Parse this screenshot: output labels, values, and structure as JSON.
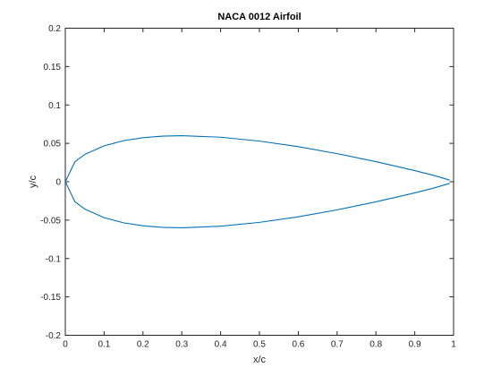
{
  "chart_data": {
    "type": "line",
    "title": "NACA 0012 Airfoil",
    "xlabel": "x/c",
    "ylabel": "y/c",
    "xlim": [
      0,
      1
    ],
    "ylim": [
      -0.2,
      0.2
    ],
    "grid": false,
    "x_ticks": [
      0,
      0.1,
      0.2,
      0.3,
      0.4,
      0.5,
      0.6,
      0.7,
      0.8,
      0.9,
      1
    ],
    "x_tick_labels": [
      "0",
      "0.1",
      "0.2",
      "0.3",
      "0.4",
      "0.5",
      "0.6",
      "0.7",
      "0.8",
      "0.9",
      "1"
    ],
    "y_ticks": [
      -0.2,
      -0.15,
      -0.1,
      -0.05,
      0,
      0.05,
      0.1,
      0.15,
      0.2
    ],
    "y_tick_labels": [
      "-0.2",
      "-0.15",
      "-0.1",
      "-0.05",
      "0",
      "0.05",
      "0.1",
      "0.15",
      "0.2"
    ],
    "series_color": "#0072BD",
    "series": [
      {
        "x": [
          0.99,
          0.95,
          0.9,
          0.8,
          0.7,
          0.6,
          0.5,
          0.4,
          0.3,
          0.25,
          0.2,
          0.15,
          0.1,
          0.05,
          0.025,
          0.0,
          0.025,
          0.05,
          0.1,
          0.15,
          0.2,
          0.25,
          0.3,
          0.4,
          0.5,
          0.6,
          0.7,
          0.8,
          0.9,
          0.95,
          0.99
        ],
        "y": [
          0.0021,
          0.0081,
          0.0145,
          0.0262,
          0.0366,
          0.0457,
          0.0529,
          0.058,
          0.06,
          0.0594,
          0.0574,
          0.0535,
          0.0468,
          0.0355,
          0.0262,
          0.0,
          -0.0262,
          -0.0355,
          -0.0468,
          -0.0535,
          -0.0574,
          -0.0594,
          -0.06,
          -0.058,
          -0.0529,
          -0.0457,
          -0.0366,
          -0.0262,
          -0.0145,
          -0.0081,
          -0.0021
        ]
      }
    ]
  }
}
